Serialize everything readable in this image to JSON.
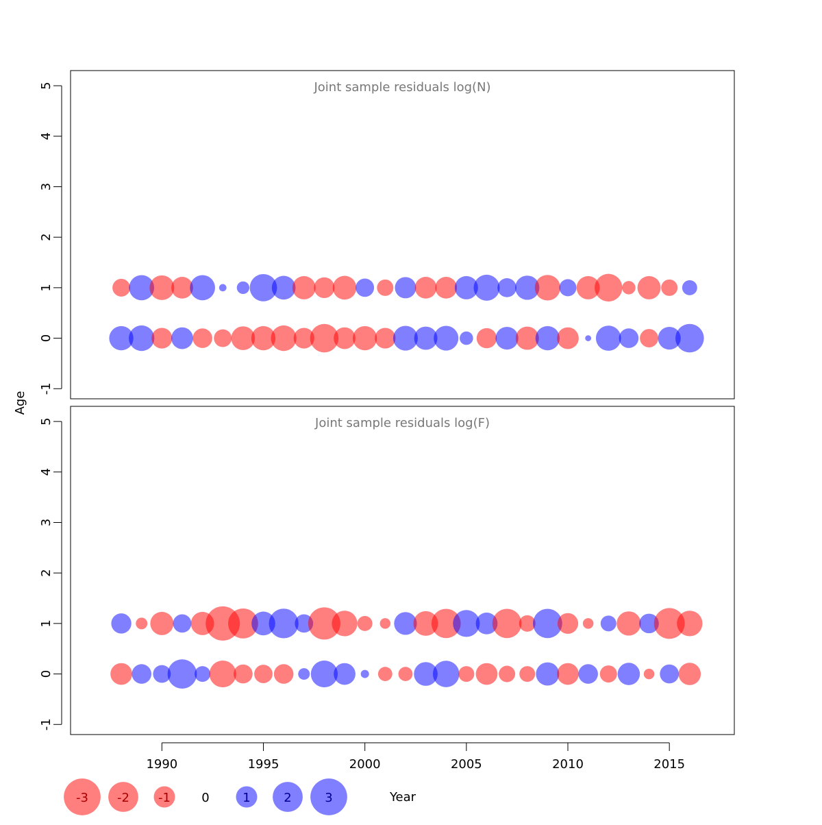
{
  "chart_data": [
    {
      "type": "bubble",
      "title": "Joint sample residuals log(N)",
      "xlabel": "Year",
      "ylabel": "Age",
      "xlim": [
        1985.5,
        2018.2
      ],
      "ylim": [
        -1.2,
        5.3
      ],
      "xticks": [
        1990,
        1995,
        2000,
        2005,
        2010,
        2015
      ],
      "yticks": [
        -1,
        0,
        1,
        2,
        3,
        4,
        5
      ],
      "x_tick_labels_visible": false,
      "years": [
        1988,
        1989,
        1990,
        1991,
        1992,
        1993,
        1994,
        1995,
        1996,
        1997,
        1998,
        1999,
        2000,
        2001,
        2002,
        2003,
        2004,
        2005,
        2006,
        2007,
        2008,
        2009,
        2010,
        2011,
        2012,
        2013,
        2014,
        2015,
        2016
      ],
      "ages": [
        0,
        1,
        2,
        3,
        4
      ],
      "residuals": {
        "0": [
          1.3,
          1.45,
          -0.95,
          1.05,
          -0.85,
          -0.7,
          -1.25,
          -1.3,
          -1.45,
          -0.95,
          -1.8,
          -1.05,
          -1.3,
          -0.95,
          1.35,
          1.2,
          1.35,
          0.4,
          -0.9,
          1.15,
          -1.2,
          1.3,
          -1.05,
          0.08,
          1.4,
          0.85,
          -0.75,
          1.15,
          1.8
        ],
        "1": [
          -0.7,
          1.4,
          -1.35,
          -1.05,
          1.4,
          0.12,
          0.35,
          1.65,
          1.25,
          -1.2,
          -0.95,
          -1.25,
          0.75,
          -0.6,
          1.0,
          -1.05,
          -1.05,
          1.2,
          1.5,
          0.8,
          1.3,
          -1.45,
          0.65,
          -1.2,
          -1.7,
          -0.4,
          -1.2,
          -0.6,
          0.5
        ]
      },
      "note": "residual sign: negative red, positive blue; circle area proportional to |residual|"
    },
    {
      "type": "bubble",
      "title": "Joint sample residuals log(F)",
      "xlabel": "Year",
      "ylabel": "Age",
      "xlim": [
        1985.5,
        2018.2
      ],
      "ylim": [
        -1.2,
        5.3
      ],
      "xticks": [
        1990,
        1995,
        2000,
        2005,
        2010,
        2015
      ],
      "yticks": [
        -1,
        0,
        1,
        2,
        3,
        4,
        5
      ],
      "x_tick_labels_visible": true,
      "years": [
        1988,
        1989,
        1990,
        1991,
        1992,
        1993,
        1994,
        1995,
        1996,
        1997,
        1998,
        1999,
        2000,
        2001,
        2002,
        2003,
        2004,
        2005,
        2006,
        2007,
        2008,
        2009,
        2010,
        2011,
        2012,
        2013,
        2014,
        2015,
        2016
      ],
      "ages": [
        0,
        1,
        2,
        3
      ],
      "residuals": {
        "0": [
          -1.05,
          0.85,
          0.7,
          1.9,
          0.55,
          -1.6,
          -0.8,
          -0.75,
          -0.85,
          0.3,
          1.6,
          1.05,
          0.15,
          -0.45,
          -0.45,
          1.25,
          1.55,
          -0.55,
          -1.05,
          -0.6,
          -0.55,
          1.2,
          -1.05,
          0.85,
          -0.65,
          1.1,
          -0.25,
          0.8,
          -1.1
        ],
        "1": [
          0.9,
          -0.3,
          -1.2,
          0.75,
          -1.2,
          -2.6,
          -2.0,
          1.25,
          1.95,
          0.75,
          -2.3,
          -1.45,
          -0.5,
          -0.25,
          1.15,
          -1.35,
          -1.9,
          1.6,
          1.05,
          -1.9,
          -0.6,
          1.9,
          -0.95,
          -0.25,
          0.55,
          -1.3,
          0.85,
          -2.1,
          -1.45
        ]
      }
    }
  ],
  "legend": {
    "items": [
      {
        "label": "-3",
        "value": -3
      },
      {
        "label": "-2",
        "value": -2
      },
      {
        "label": "-1",
        "value": -1
      },
      {
        "label": "0",
        "value": 0
      },
      {
        "label": "1",
        "value": 1
      },
      {
        "label": "2",
        "value": 2
      },
      {
        "label": "3",
        "value": 3
      }
    ]
  },
  "colors": {
    "negative": "#ff0000",
    "positive": "#0000ff",
    "title_text": "#777777",
    "axis": "#000000"
  }
}
